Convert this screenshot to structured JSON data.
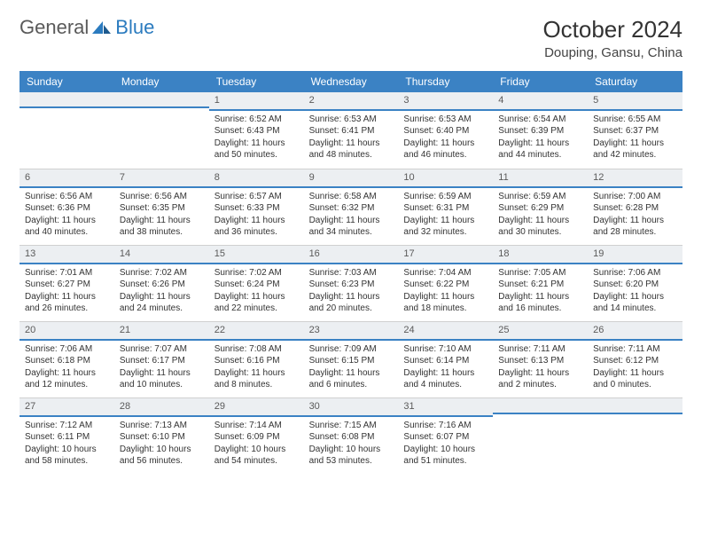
{
  "logo": {
    "text1": "General",
    "text2": "Blue"
  },
  "header": {
    "month_title": "October 2024",
    "location": "Douping, Gansu, China"
  },
  "colors": {
    "header_bg": "#3b82c4",
    "header_text": "#ffffff",
    "daynum_bg": "#eceff2",
    "accent_border": "#3b82c4",
    "body_text": "#333333"
  },
  "day_names": [
    "Sunday",
    "Monday",
    "Tuesday",
    "Wednesday",
    "Thursday",
    "Friday",
    "Saturday"
  ],
  "weeks": [
    [
      null,
      null,
      {
        "n": "1",
        "sr": "Sunrise: 6:52 AM",
        "ss": "Sunset: 6:43 PM",
        "dl": "Daylight: 11 hours and 50 minutes."
      },
      {
        "n": "2",
        "sr": "Sunrise: 6:53 AM",
        "ss": "Sunset: 6:41 PM",
        "dl": "Daylight: 11 hours and 48 minutes."
      },
      {
        "n": "3",
        "sr": "Sunrise: 6:53 AM",
        "ss": "Sunset: 6:40 PM",
        "dl": "Daylight: 11 hours and 46 minutes."
      },
      {
        "n": "4",
        "sr": "Sunrise: 6:54 AM",
        "ss": "Sunset: 6:39 PM",
        "dl": "Daylight: 11 hours and 44 minutes."
      },
      {
        "n": "5",
        "sr": "Sunrise: 6:55 AM",
        "ss": "Sunset: 6:37 PM",
        "dl": "Daylight: 11 hours and 42 minutes."
      }
    ],
    [
      {
        "n": "6",
        "sr": "Sunrise: 6:56 AM",
        "ss": "Sunset: 6:36 PM",
        "dl": "Daylight: 11 hours and 40 minutes."
      },
      {
        "n": "7",
        "sr": "Sunrise: 6:56 AM",
        "ss": "Sunset: 6:35 PM",
        "dl": "Daylight: 11 hours and 38 minutes."
      },
      {
        "n": "8",
        "sr": "Sunrise: 6:57 AM",
        "ss": "Sunset: 6:33 PM",
        "dl": "Daylight: 11 hours and 36 minutes."
      },
      {
        "n": "9",
        "sr": "Sunrise: 6:58 AM",
        "ss": "Sunset: 6:32 PM",
        "dl": "Daylight: 11 hours and 34 minutes."
      },
      {
        "n": "10",
        "sr": "Sunrise: 6:59 AM",
        "ss": "Sunset: 6:31 PM",
        "dl": "Daylight: 11 hours and 32 minutes."
      },
      {
        "n": "11",
        "sr": "Sunrise: 6:59 AM",
        "ss": "Sunset: 6:29 PM",
        "dl": "Daylight: 11 hours and 30 minutes."
      },
      {
        "n": "12",
        "sr": "Sunrise: 7:00 AM",
        "ss": "Sunset: 6:28 PM",
        "dl": "Daylight: 11 hours and 28 minutes."
      }
    ],
    [
      {
        "n": "13",
        "sr": "Sunrise: 7:01 AM",
        "ss": "Sunset: 6:27 PM",
        "dl": "Daylight: 11 hours and 26 minutes."
      },
      {
        "n": "14",
        "sr": "Sunrise: 7:02 AM",
        "ss": "Sunset: 6:26 PM",
        "dl": "Daylight: 11 hours and 24 minutes."
      },
      {
        "n": "15",
        "sr": "Sunrise: 7:02 AM",
        "ss": "Sunset: 6:24 PM",
        "dl": "Daylight: 11 hours and 22 minutes."
      },
      {
        "n": "16",
        "sr": "Sunrise: 7:03 AM",
        "ss": "Sunset: 6:23 PM",
        "dl": "Daylight: 11 hours and 20 minutes."
      },
      {
        "n": "17",
        "sr": "Sunrise: 7:04 AM",
        "ss": "Sunset: 6:22 PM",
        "dl": "Daylight: 11 hours and 18 minutes."
      },
      {
        "n": "18",
        "sr": "Sunrise: 7:05 AM",
        "ss": "Sunset: 6:21 PM",
        "dl": "Daylight: 11 hours and 16 minutes."
      },
      {
        "n": "19",
        "sr": "Sunrise: 7:06 AM",
        "ss": "Sunset: 6:20 PM",
        "dl": "Daylight: 11 hours and 14 minutes."
      }
    ],
    [
      {
        "n": "20",
        "sr": "Sunrise: 7:06 AM",
        "ss": "Sunset: 6:18 PM",
        "dl": "Daylight: 11 hours and 12 minutes."
      },
      {
        "n": "21",
        "sr": "Sunrise: 7:07 AM",
        "ss": "Sunset: 6:17 PM",
        "dl": "Daylight: 11 hours and 10 minutes."
      },
      {
        "n": "22",
        "sr": "Sunrise: 7:08 AM",
        "ss": "Sunset: 6:16 PM",
        "dl": "Daylight: 11 hours and 8 minutes."
      },
      {
        "n": "23",
        "sr": "Sunrise: 7:09 AM",
        "ss": "Sunset: 6:15 PM",
        "dl": "Daylight: 11 hours and 6 minutes."
      },
      {
        "n": "24",
        "sr": "Sunrise: 7:10 AM",
        "ss": "Sunset: 6:14 PM",
        "dl": "Daylight: 11 hours and 4 minutes."
      },
      {
        "n": "25",
        "sr": "Sunrise: 7:11 AM",
        "ss": "Sunset: 6:13 PM",
        "dl": "Daylight: 11 hours and 2 minutes."
      },
      {
        "n": "26",
        "sr": "Sunrise: 7:11 AM",
        "ss": "Sunset: 6:12 PM",
        "dl": "Daylight: 11 hours and 0 minutes."
      }
    ],
    [
      {
        "n": "27",
        "sr": "Sunrise: 7:12 AM",
        "ss": "Sunset: 6:11 PM",
        "dl": "Daylight: 10 hours and 58 minutes."
      },
      {
        "n": "28",
        "sr": "Sunrise: 7:13 AM",
        "ss": "Sunset: 6:10 PM",
        "dl": "Daylight: 10 hours and 56 minutes."
      },
      {
        "n": "29",
        "sr": "Sunrise: 7:14 AM",
        "ss": "Sunset: 6:09 PM",
        "dl": "Daylight: 10 hours and 54 minutes."
      },
      {
        "n": "30",
        "sr": "Sunrise: 7:15 AM",
        "ss": "Sunset: 6:08 PM",
        "dl": "Daylight: 10 hours and 53 minutes."
      },
      {
        "n": "31",
        "sr": "Sunrise: 7:16 AM",
        "ss": "Sunset: 6:07 PM",
        "dl": "Daylight: 10 hours and 51 minutes."
      },
      null,
      null
    ]
  ]
}
